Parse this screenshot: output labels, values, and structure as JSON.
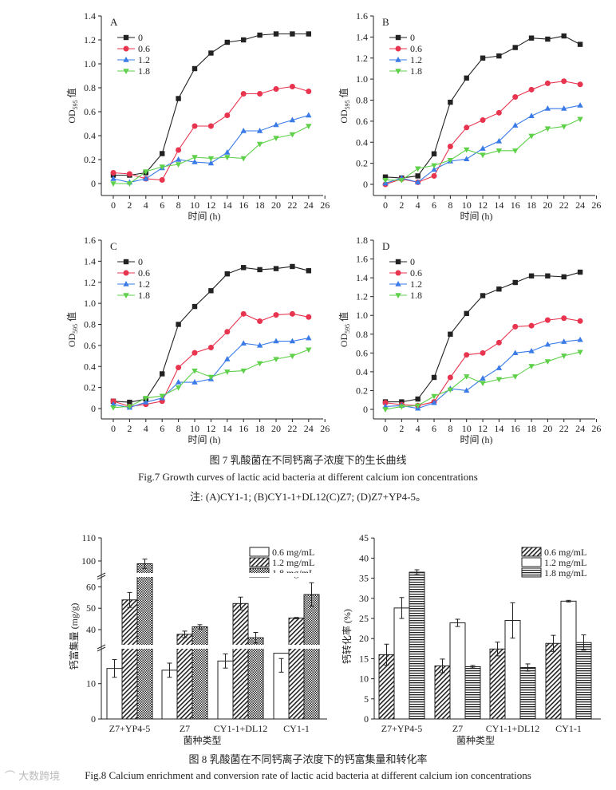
{
  "figure7": {
    "caption_cn": "图 7   乳酸菌在不同钙离子浓度下的生长曲线",
    "caption_en": "Fig.7    Growth curves of lactic acid bacteria at different calcium ion concentrations",
    "note": "注: (A)CY1-1; (B)CY1-1+DL12(C)Z7; (D)Z7+YP4-5。"
  },
  "figure8": {
    "caption_cn": "图 8   乳酸菌在不同钙离子浓度下的钙富集量和转化率",
    "caption_en": "Fig.8    Calcium enrichment and conversion rate of lactic acid bacteria at different calcium ion concentrations"
  },
  "watermark": "大数跨境",
  "colors": {
    "0": "#222222",
    "0.6": "#e8344e",
    "1.2": "#3a7be8",
    "1.8": "#5ed04a"
  },
  "chart_data": [
    {
      "type": "line",
      "panel": "A",
      "xlabel": "时间 (h)",
      "ylabel": "OD",
      "ylabel_sub": "595",
      "ylabel_suffix": " 值",
      "xlim": [
        0,
        26
      ],
      "ylim": [
        0,
        1.4
      ],
      "xticks": [
        0,
        2,
        4,
        6,
        8,
        10,
        12,
        14,
        16,
        18,
        20,
        22,
        24,
        26
      ],
      "yticks": [
        0,
        0.2,
        0.4,
        0.6,
        0.8,
        1.0,
        1.2,
        1.4
      ],
      "x": [
        0,
        2,
        4,
        6,
        8,
        10,
        12,
        14,
        16,
        18,
        20,
        22,
        24
      ],
      "legend": "top-left",
      "series": [
        {
          "name": "0",
          "marker": "square",
          "values": [
            0.07,
            0.07,
            0.09,
            0.25,
            0.71,
            0.96,
            1.09,
            1.18,
            1.2,
            1.24,
            1.25,
            1.25,
            1.25
          ]
        },
        {
          "name": "0.6",
          "marker": "circle",
          "values": [
            0.09,
            0.08,
            0.04,
            0.03,
            0.28,
            0.48,
            0.48,
            0.57,
            0.75,
            0.75,
            0.79,
            0.81,
            0.77
          ]
        },
        {
          "name": "1.2",
          "marker": "triangle-up",
          "values": [
            0.04,
            0.01,
            0.04,
            0.13,
            0.2,
            0.18,
            0.17,
            0.26,
            0.44,
            0.44,
            0.49,
            0.53,
            0.57
          ]
        },
        {
          "name": "1.8",
          "marker": "triangle-down",
          "values": [
            0.0,
            0.0,
            0.1,
            0.14,
            0.16,
            0.22,
            0.21,
            0.22,
            0.21,
            0.33,
            0.38,
            0.41,
            0.48
          ]
        }
      ]
    },
    {
      "type": "line",
      "panel": "B",
      "xlabel": "时间 (h)",
      "ylabel": "OD",
      "ylabel_sub": "595",
      "ylabel_suffix": " 值",
      "xlim": [
        0,
        26
      ],
      "ylim": [
        0,
        1.6
      ],
      "xticks": [
        0,
        2,
        4,
        6,
        8,
        10,
        12,
        14,
        16,
        18,
        20,
        22,
        24,
        26
      ],
      "yticks": [
        0,
        0.2,
        0.4,
        0.6,
        0.8,
        1.0,
        1.2,
        1.4,
        1.6
      ],
      "x": [
        0,
        2,
        4,
        6,
        8,
        10,
        12,
        14,
        16,
        18,
        20,
        22,
        24
      ],
      "legend": "top-left",
      "series": [
        {
          "name": "0",
          "marker": "square",
          "values": [
            0.07,
            0.06,
            0.08,
            0.29,
            0.78,
            1.01,
            1.2,
            1.22,
            1.3,
            1.39,
            1.38,
            1.41,
            1.33
          ]
        },
        {
          "name": "0.6",
          "marker": "circle",
          "values": [
            0.0,
            0.05,
            0.02,
            0.08,
            0.36,
            0.54,
            0.61,
            0.68,
            0.83,
            0.9,
            0.96,
            0.98,
            0.95
          ]
        },
        {
          "name": "1.2",
          "marker": "triangle-up",
          "values": [
            0.01,
            0.06,
            0.02,
            0.14,
            0.22,
            0.24,
            0.34,
            0.41,
            0.56,
            0.65,
            0.72,
            0.72,
            0.75
          ]
        },
        {
          "name": "1.8",
          "marker": "triangle-down",
          "values": [
            0.04,
            0.04,
            0.15,
            0.18,
            0.23,
            0.33,
            0.28,
            0.32,
            0.32,
            0.46,
            0.53,
            0.55,
            0.62
          ]
        }
      ]
    },
    {
      "type": "line",
      "panel": "C",
      "xlabel": "时间 (h)",
      "ylabel": "OD",
      "ylabel_sub": "595",
      "ylabel_suffix": " 值",
      "xlim": [
        0,
        26
      ],
      "ylim": [
        0,
        1.6
      ],
      "xticks": [
        0,
        2,
        4,
        6,
        8,
        10,
        12,
        14,
        16,
        18,
        20,
        22,
        24,
        26
      ],
      "yticks": [
        0,
        0.2,
        0.4,
        0.6,
        0.8,
        1.0,
        1.2,
        1.4,
        1.6
      ],
      "x": [
        0,
        2,
        4,
        6,
        8,
        10,
        12,
        14,
        16,
        18,
        20,
        22,
        24
      ],
      "legend": "top-left",
      "series": [
        {
          "name": "0",
          "marker": "square",
          "values": [
            0.07,
            0.06,
            0.09,
            0.33,
            0.8,
            0.97,
            1.12,
            1.28,
            1.34,
            1.32,
            1.33,
            1.35,
            1.31
          ]
        },
        {
          "name": "0.6",
          "marker": "circle",
          "values": [
            0.07,
            0.02,
            0.04,
            0.07,
            0.39,
            0.53,
            0.58,
            0.73,
            0.9,
            0.83,
            0.89,
            0.9,
            0.87
          ]
        },
        {
          "name": "1.2",
          "marker": "triangle-up",
          "values": [
            0.04,
            0.01,
            0.06,
            0.1,
            0.25,
            0.25,
            0.28,
            0.47,
            0.62,
            0.6,
            0.64,
            0.64,
            0.67
          ]
        },
        {
          "name": "1.8",
          "marker": "triangle-down",
          "values": [
            0.01,
            0.02,
            0.1,
            0.12,
            0.2,
            0.36,
            0.3,
            0.35,
            0.36,
            0.43,
            0.47,
            0.5,
            0.56
          ]
        }
      ]
    },
    {
      "type": "line",
      "panel": "D",
      "xlabel": "时间 (h)",
      "ylabel": "OD",
      "ylabel_sub": "595",
      "ylabel_suffix": " 值",
      "xlim": [
        0,
        26
      ],
      "ylim": [
        0,
        1.8
      ],
      "xticks": [
        0,
        2,
        4,
        6,
        8,
        10,
        12,
        14,
        16,
        18,
        20,
        22,
        24,
        26
      ],
      "yticks": [
        0,
        0.2,
        0.4,
        0.6,
        0.8,
        1.0,
        1.2,
        1.4,
        1.6,
        1.8
      ],
      "x": [
        0,
        2,
        4,
        6,
        8,
        10,
        12,
        14,
        16,
        18,
        20,
        22,
        24
      ],
      "legend": "top-left",
      "series": [
        {
          "name": "0",
          "marker": "square",
          "values": [
            0.08,
            0.08,
            0.11,
            0.34,
            0.8,
            1.02,
            1.21,
            1.28,
            1.35,
            1.42,
            1.42,
            1.41,
            1.46
          ]
        },
        {
          "name": "0.6",
          "marker": "circle",
          "values": [
            0.07,
            0.05,
            0.04,
            0.08,
            0.34,
            0.58,
            0.6,
            0.71,
            0.88,
            0.89,
            0.95,
            0.97,
            0.94
          ]
        },
        {
          "name": "1.2",
          "marker": "triangle-up",
          "values": [
            0.03,
            0.04,
            0.01,
            0.07,
            0.22,
            0.2,
            0.33,
            0.44,
            0.6,
            0.62,
            0.69,
            0.72,
            0.74
          ]
        },
        {
          "name": "1.8",
          "marker": "triangle-down",
          "values": [
            0.0,
            0.03,
            0.04,
            0.14,
            0.21,
            0.35,
            0.28,
            0.32,
            0.35,
            0.46,
            0.51,
            0.57,
            0.61
          ]
        }
      ]
    },
    {
      "type": "bar",
      "title": "",
      "xlabel": "菌种类型",
      "ylabel": "钙富集量 (mg/g)",
      "ylim": [
        0,
        110
      ],
      "axis_breaks": [
        [
          20,
          32
        ],
        [
          65,
          93.5
        ]
      ],
      "yticks": [
        0,
        10,
        40,
        50,
        60,
        100,
        110
      ],
      "categories": [
        "Z7+YP4-5",
        "Z7",
        "CY1-1+DL12",
        "CY1-1"
      ],
      "legend": "top-right",
      "series": [
        {
          "name": "0.6 mg/mL",
          "pattern": "white",
          "values": [
            14.3,
            13.8,
            16.4,
            18.6
          ],
          "errors": [
            2.5,
            2.0,
            2.0,
            1.5
          ]
        },
        {
          "name": "1.2 mg/mL",
          "pattern": "diagonal",
          "values": [
            53.9,
            37.8,
            52.2,
            45.4
          ],
          "errors": [
            3.5,
            1.5,
            3.0,
            0.3
          ]
        },
        {
          "name": "1.8 mg/mL",
          "pattern": "crosshatch",
          "values": [
            98.8,
            41.3,
            36.2,
            56.4
          ],
          "errors": [
            2.0,
            1.0,
            2.5,
            5.5
          ]
        }
      ]
    },
    {
      "type": "bar",
      "title": "",
      "xlabel": "菌种类型",
      "ylabel": "钙转化率 (%)",
      "ylim": [
        0,
        45
      ],
      "yticks": [
        0,
        5,
        10,
        15,
        20,
        25,
        30,
        35,
        40,
        45
      ],
      "categories": [
        "Z7+YP4-5",
        "Z7",
        "CY1-1+DL12",
        "CY1-1"
      ],
      "legend": "top-right",
      "series": [
        {
          "name": "0.6 mg/mL",
          "pattern": "diagonal",
          "values": [
            16.0,
            13.2,
            17.4,
            18.8
          ],
          "errors": [
            2.6,
            1.7,
            1.7,
            2.0
          ]
        },
        {
          "name": "1.2 mg/mL",
          "pattern": "white",
          "values": [
            27.6,
            23.9,
            24.5,
            29.3
          ],
          "errors": [
            2.6,
            0.9,
            4.4,
            0.2
          ]
        },
        {
          "name": "1.8 mg/mL",
          "pattern": "horizontal",
          "values": [
            36.5,
            13.0,
            12.8,
            19.0
          ],
          "errors": [
            0.6,
            0.3,
            0.9,
            1.9
          ]
        }
      ]
    }
  ]
}
